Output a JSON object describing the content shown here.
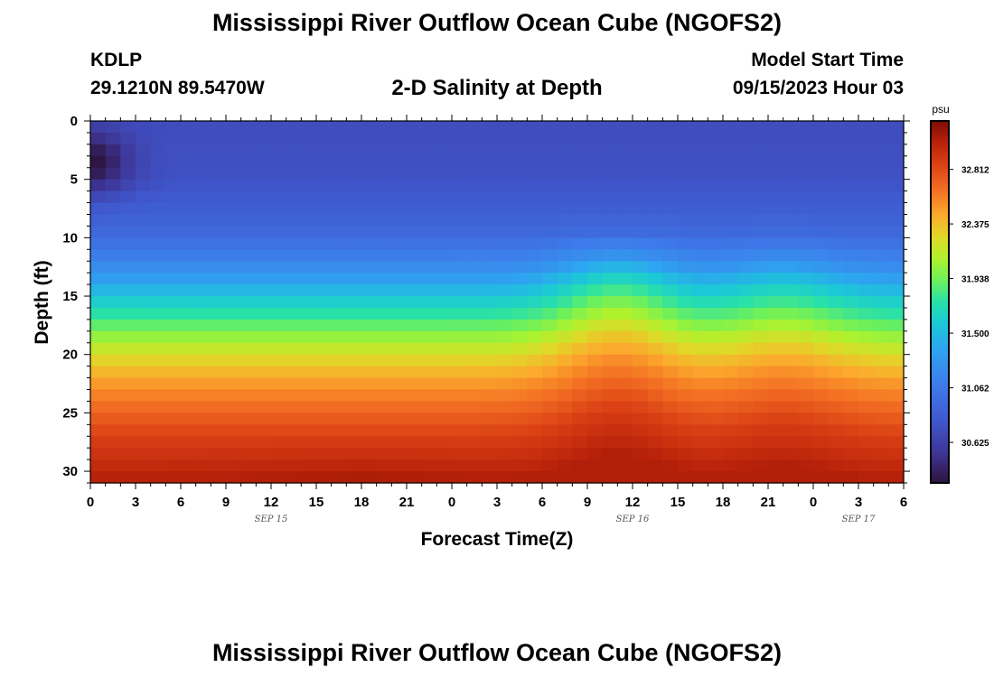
{
  "header": {
    "title": "Mississippi River Outflow Ocean Cube (NGOFS2)",
    "station": "KDLP",
    "coords": "29.1210N  89.5470W",
    "subtitle": "2-D Salinity at Depth",
    "model_start_label": "Model Start Time",
    "model_start_value": "09/15/2023 Hour 03"
  },
  "footer": {
    "title": "Mississippi River Outflow Ocean Cube (NGOFS2)"
  },
  "chart_data": {
    "type": "heatmap",
    "variable": "Salinity",
    "xlabel": "Forecast Time(Z)",
    "ylabel": "Depth (ft)",
    "x_range_hours": [
      0,
      54
    ],
    "x_tick_labels": [
      "0",
      "3",
      "6",
      "9",
      "12",
      "15",
      "18",
      "21",
      "0",
      "3",
      "6",
      "9",
      "12",
      "15",
      "18",
      "21",
      "0",
      "3",
      "6"
    ],
    "date_labels": [
      {
        "text": "SEP 15",
        "hour": 12
      },
      {
        "text": "SEP 16",
        "hour": 36
      },
      {
        "text": "SEP 17",
        "hour": 51
      }
    ],
    "ylim": [
      0,
      31
    ],
    "y_ticks": [
      0,
      5,
      10,
      15,
      20,
      25,
      30
    ],
    "y_inverted": true,
    "colorbar": {
      "unit": "psu",
      "range": [
        30.3,
        33.2
      ],
      "ticks": [
        "30.625",
        "31.062",
        "31.500",
        "31.938",
        "32.375",
        "32.812"
      ],
      "colormap": "turbo"
    },
    "depth_profile_ft": [
      0,
      5,
      10,
      13,
      15,
      17,
      19,
      21,
      23,
      25,
      27,
      31
    ],
    "salinity_profile_psu": [
      30.72,
      30.75,
      30.95,
      31.25,
      31.55,
      31.82,
      32.1,
      32.35,
      32.55,
      32.7,
      32.85,
      33.05
    ],
    "features": [
      {
        "type": "low-salinity-patch",
        "hour": 0,
        "depth_ft": 3.5,
        "min_psu": 30.3
      },
      {
        "type": "isohaline-dip",
        "hour": 35,
        "depth_ft_shift": 2.5
      },
      {
        "type": "isohaline-dip",
        "hour": 46,
        "depth_ft_shift": 1.4
      }
    ]
  }
}
